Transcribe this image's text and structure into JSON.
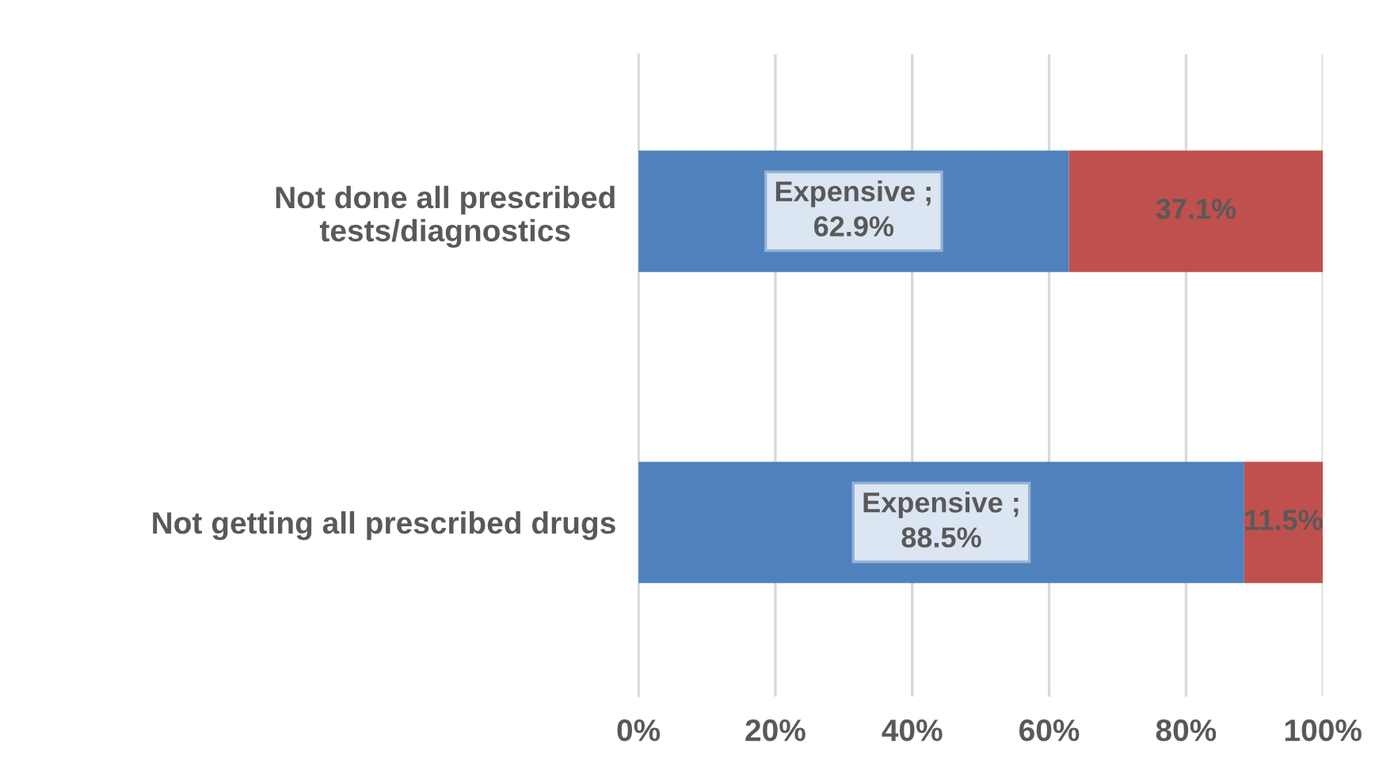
{
  "chart_data": {
    "type": "bar",
    "orientation": "horizontal",
    "stacked": true,
    "categories": [
      "Not done all prescribed\ntests/diagnostics",
      "Not getting all prescribed drugs"
    ],
    "series": [
      {
        "color": "#4f81bd",
        "values": [
          62.9,
          88.5
        ],
        "value_labels": [
          "Expensive ;\n62.9%",
          "Expensive ;\n88.5%"
        ]
      },
      {
        "color": "#c0504d",
        "values": [
          37.1,
          11.5
        ],
        "value_labels": [
          "37.1%",
          "11.5%"
        ]
      }
    ],
    "xlim": [
      0,
      100
    ],
    "xticks": [
      {
        "value": 0,
        "label": "0%"
      },
      {
        "value": 20,
        "label": "20%"
      },
      {
        "value": 40,
        "label": "40%"
      },
      {
        "value": 60,
        "label": "60%"
      },
      {
        "value": 80,
        "label": "80%"
      },
      {
        "value": 100,
        "label": "100%"
      }
    ],
    "grid": "x",
    "legend": false
  }
}
